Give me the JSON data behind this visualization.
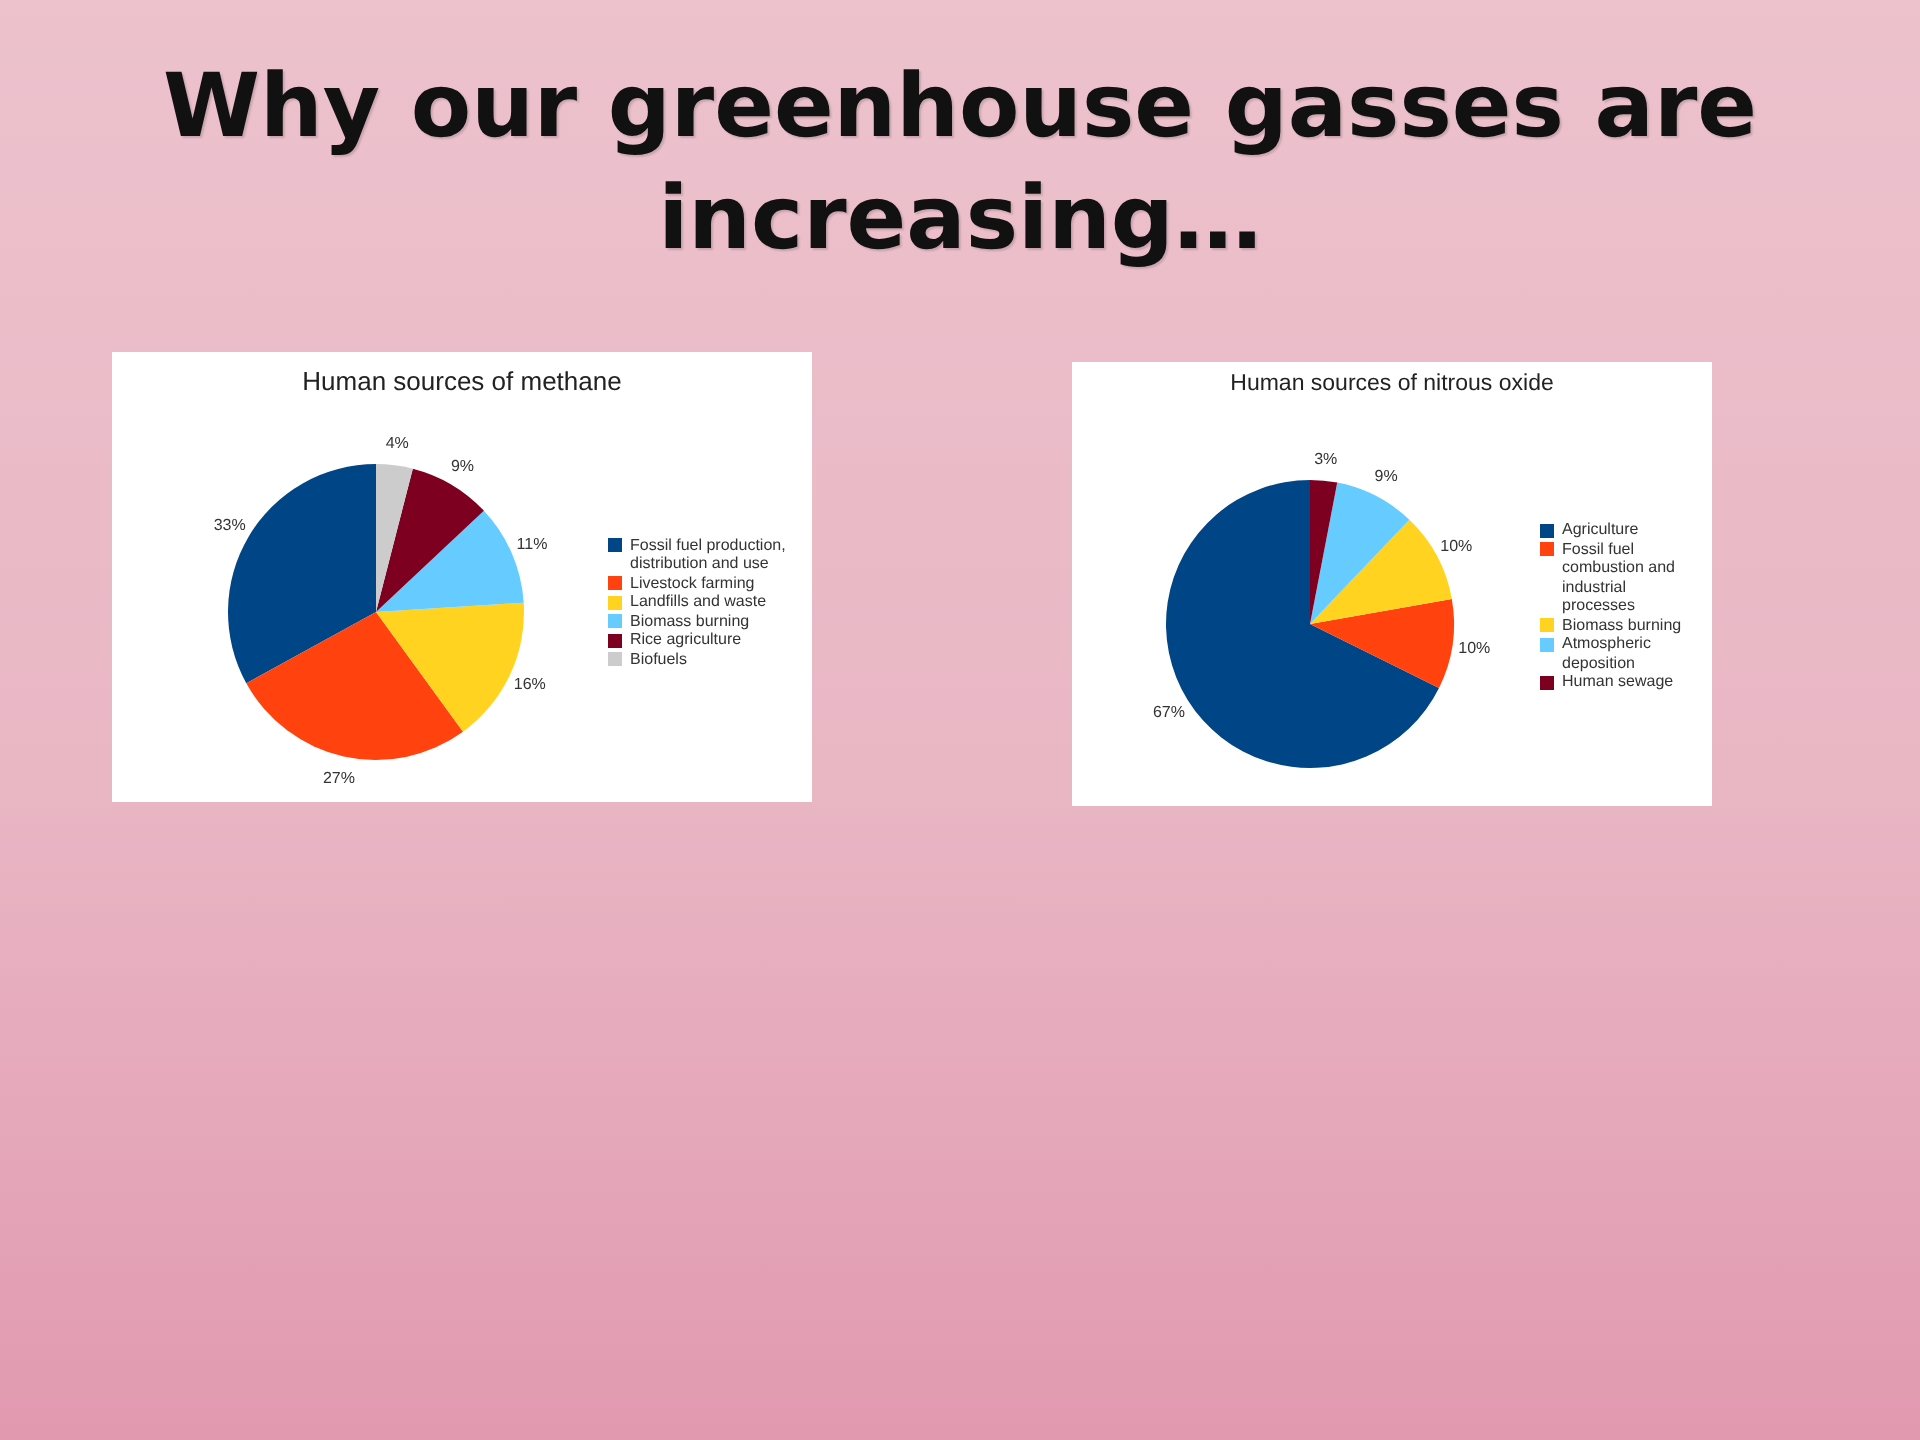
{
  "chart_data": [
    {
      "type": "other",
      "title": "Why our greenhouse gasses are increasing…"
    },
    {
      "type": "pie",
      "title": "Human sources of methane",
      "categories": [
        "Fossil fuel production, distribution and use",
        "Livestock farming",
        "Landfills and waste",
        "Biomass burning",
        "Rice agriculture",
        "Biofuels"
      ],
      "values": [
        33,
        27,
        16,
        11,
        9,
        4
      ],
      "colors": [
        "#004586",
        "#ff420e",
        "#ffd320",
        "#66ccff",
        "#7e0021",
        "#cccccc"
      ],
      "value_labels": [
        "33%",
        "27%",
        "16%",
        "11%",
        "9%",
        "4%"
      ],
      "legend": "right"
    },
    {
      "type": "pie",
      "title": "Human sources of nitrous oxide",
      "categories": [
        "Agriculture",
        "Fossil fuel combustion and industrial processes",
        "Biomass burning",
        "Atmospheric deposition",
        "Human sewage"
      ],
      "values": [
        67,
        10,
        10,
        9,
        3
      ],
      "colors": [
        "#004586",
        "#ff420e",
        "#ffd320",
        "#66ccff",
        "#7e0021"
      ],
      "value_labels": [
        "67%",
        "10%",
        "10%",
        "9%",
        "3%"
      ],
      "legend": "right"
    }
  ]
}
